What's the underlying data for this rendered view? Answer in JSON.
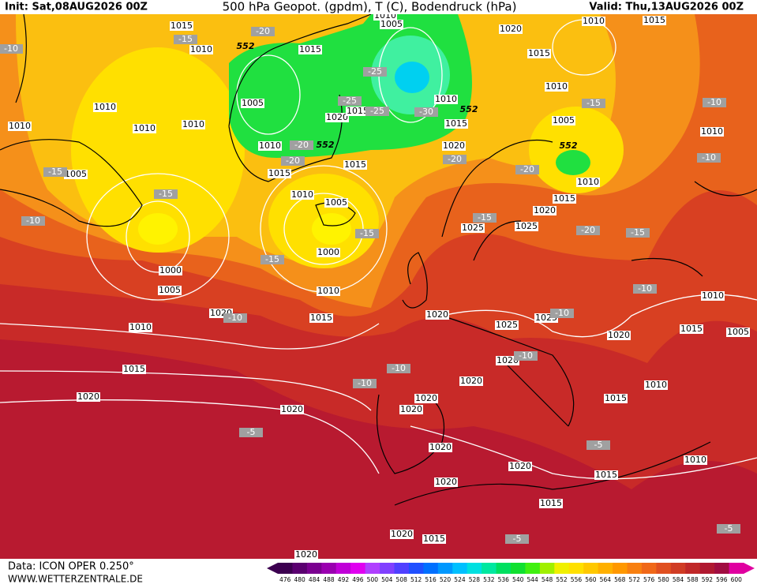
{
  "header": {
    "init": "Init: Sat,08AUG2026 00Z",
    "title": "500 hPa Geopot. (gpdm), T (C), Bodendruck (hPa)",
    "valid": "Valid: Thu,13AUG2026 00Z"
  },
  "footer": {
    "data": "Data: ICON OPER 0.250°",
    "site": "WWW.WETTERZENTRALE.DE"
  },
  "colorbar": {
    "values": [
      476,
      480,
      484,
      488,
      492,
      496,
      500,
      504,
      508,
      512,
      516,
      520,
      524,
      528,
      532,
      536,
      540,
      544,
      548,
      552,
      556,
      560,
      564,
      568,
      572,
      576,
      580,
      584,
      588,
      592,
      596,
      600
    ],
    "colors": [
      "#3c0050",
      "#5a0070",
      "#7a0090",
      "#9a00b0",
      "#c000d8",
      "#e000f0",
      "#b040ff",
      "#8040ff",
      "#5040ff",
      "#2050ff",
      "#0070ff",
      "#0098ff",
      "#00c0ff",
      "#00e0e0",
      "#00e8a0",
      "#00e060",
      "#10e030",
      "#40f010",
      "#a0f000",
      "#f0f000",
      "#ffe000",
      "#ffc800",
      "#ffb000",
      "#ff9800",
      "#f88010",
      "#f06818",
      "#e05020",
      "#d03c24",
      "#c02828",
      "#b01830",
      "#a00c40",
      "#e000a0"
    ]
  },
  "pressure_labels": [
    "1015",
    "1010",
    "1015",
    "1010",
    "1005",
    "1020",
    "1015",
    "1010",
    "1015",
    "1010",
    "1010",
    "1010",
    "1010",
    "1005",
    "1020",
    "1015",
    "1010",
    "1015",
    "1010",
    "1005",
    "1010",
    "1010",
    "1015",
    "1015",
    "1020",
    "1010",
    "1005",
    "1010",
    "1005",
    "1015",
    "1020",
    "1025",
    "1025",
    "1000",
    "1000",
    "1005",
    "1010",
    "1015",
    "1020",
    "1020",
    "1025",
    "1025",
    "1010",
    "1010",
    "1015",
    "1005",
    "1020",
    "1020",
    "1015",
    "1020",
    "1010",
    "1015",
    "1020",
    "1020",
    "1020",
    "1020",
    "1020",
    "1020",
    "1020",
    "1015",
    "1015",
    "1010",
    "1020",
    "1015",
    "1020"
  ],
  "temperature_labels": [
    "-10",
    "-15",
    "-20",
    "-25",
    "-25",
    "-30",
    "-25",
    "-20",
    "-20",
    "-20",
    "-15",
    "-10",
    "-20",
    "-10",
    "-15",
    "-15",
    "-10",
    "-15",
    "-15",
    "-15",
    "-20",
    "-15",
    "-10",
    "-10",
    "-10",
    "-10",
    "-10",
    "-10",
    "-5",
    "-5",
    "-5",
    "-5"
  ],
  "height_labels": [
    "552",
    "552",
    "552",
    "552"
  ]
}
